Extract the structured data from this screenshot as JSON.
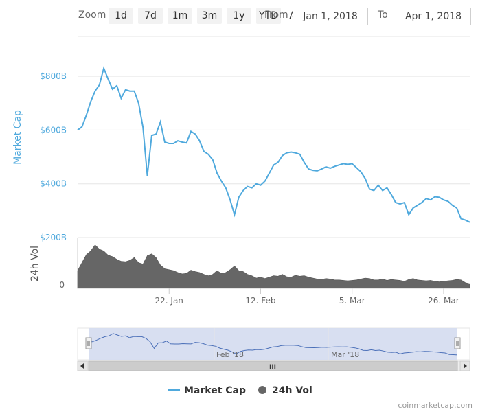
{
  "range_selector": {
    "zoom_label": "Zoom",
    "buttons": [
      "1d",
      "7d",
      "1m",
      "3m",
      "1y",
      "YTD",
      "ALL"
    ],
    "from_label": "From",
    "to_label": "To",
    "from_value": "Jan 1, 2018",
    "to_value": "Apr 1, 2018"
  },
  "navigator": {
    "labels": [
      "Feb '18",
      "Mar '18"
    ],
    "scroll_grip": "III"
  },
  "legend": {
    "market_cap": "Market Cap",
    "volume": "24h Vol"
  },
  "credit": "coinmarketcap.com",
  "colors": {
    "market_cap": "#4fa9dd",
    "volume": "#666666",
    "navigator_fill": "#d4dcf0",
    "navigator_line": "#4a6fb8"
  },
  "chart_data": {
    "type": "line",
    "x_type": "date",
    "x_range": [
      "2018-01-01",
      "2018-04-01"
    ],
    "x_tick_labels": [
      "22. Jan",
      "12. Feb",
      "5. Mar",
      "26. Mar"
    ],
    "grid": true,
    "legend_position": "bottom",
    "panels": [
      {
        "name": "price",
        "ylabel": "Market Cap",
        "y_tick_labels": [
          "$200B",
          "$400B",
          "$600B",
          "$800B"
        ],
        "ylim": [
          200,
          900
        ],
        "y_unit": "B USD",
        "series": [
          {
            "name": "Market Cap",
            "points": [
              [
                "2018-01-01",
                600
              ],
              [
                "2018-01-02",
                612
              ],
              [
                "2018-01-03",
                655
              ],
              [
                "2018-01-04",
                705
              ],
              [
                "2018-01-05",
                745
              ],
              [
                "2018-01-06",
                768
              ],
              [
                "2018-01-07",
                830
              ],
              [
                "2018-01-08",
                790
              ],
              [
                "2018-01-09",
                752
              ],
              [
                "2018-01-10",
                765
              ],
              [
                "2018-01-11",
                718
              ],
              [
                "2018-01-12",
                750
              ],
              [
                "2018-01-13",
                745
              ],
              [
                "2018-01-14",
                745
              ],
              [
                "2018-01-15",
                700
              ],
              [
                "2018-01-16",
                610
              ],
              [
                "2018-01-17",
                430
              ],
              [
                "2018-01-18",
                580
              ],
              [
                "2018-01-19",
                585
              ],
              [
                "2018-01-20",
                630
              ],
              [
                "2018-01-21",
                555
              ],
              [
                "2018-01-22",
                550
              ],
              [
                "2018-01-23",
                550
              ],
              [
                "2018-01-24",
                560
              ],
              [
                "2018-01-25",
                555
              ],
              [
                "2018-01-26",
                552
              ],
              [
                "2018-01-27",
                595
              ],
              [
                "2018-01-28",
                585
              ],
              [
                "2018-01-29",
                560
              ],
              [
                "2018-01-30",
                520
              ],
              [
                "2018-01-31",
                510
              ],
              [
                "2018-02-01",
                490
              ],
              [
                "2018-02-02",
                440
              ],
              [
                "2018-02-03",
                410
              ],
              [
                "2018-02-04",
                385
              ],
              [
                "2018-02-05",
                340
              ],
              [
                "2018-02-06",
                285
              ],
              [
                "2018-02-07",
                350
              ],
              [
                "2018-02-08",
                375
              ],
              [
                "2018-02-09",
                390
              ],
              [
                "2018-02-10",
                385
              ],
              [
                "2018-02-11",
                400
              ],
              [
                "2018-02-12",
                395
              ],
              [
                "2018-02-13",
                410
              ],
              [
                "2018-02-14",
                440
              ],
              [
                "2018-02-15",
                470
              ],
              [
                "2018-02-16",
                480
              ],
              [
                "2018-02-17",
                505
              ],
              [
                "2018-02-18",
                515
              ],
              [
                "2018-02-19",
                518
              ],
              [
                "2018-02-20",
                515
              ],
              [
                "2018-02-21",
                510
              ],
              [
                "2018-02-22",
                480
              ],
              [
                "2018-02-23",
                455
              ],
              [
                "2018-02-24",
                450
              ],
              [
                "2018-02-25",
                448
              ],
              [
                "2018-02-26",
                455
              ],
              [
                "2018-02-27",
                463
              ],
              [
                "2018-02-28",
                458
              ],
              [
                "2018-03-01",
                465
              ],
              [
                "2018-03-02",
                470
              ],
              [
                "2018-03-03",
                475
              ],
              [
                "2018-03-04",
                472
              ],
              [
                "2018-03-05",
                475
              ],
              [
                "2018-03-06",
                460
              ],
              [
                "2018-03-07",
                445
              ],
              [
                "2018-03-08",
                420
              ],
              [
                "2018-03-09",
                380
              ],
              [
                "2018-03-10",
                375
              ],
              [
                "2018-03-11",
                395
              ],
              [
                "2018-03-12",
                375
              ],
              [
                "2018-03-13",
                385
              ],
              [
                "2018-03-14",
                360
              ],
              [
                "2018-03-15",
                330
              ],
              [
                "2018-03-16",
                325
              ],
              [
                "2018-03-17",
                330
              ],
              [
                "2018-03-18",
                285
              ],
              [
                "2018-03-19",
                310
              ],
              [
                "2018-03-20",
                320
              ],
              [
                "2018-03-21",
                330
              ],
              [
                "2018-03-22",
                345
              ],
              [
                "2018-03-23",
                340
              ],
              [
                "2018-03-24",
                352
              ],
              [
                "2018-03-25",
                350
              ],
              [
                "2018-03-26",
                340
              ],
              [
                "2018-03-27",
                335
              ],
              [
                "2018-03-28",
                320
              ],
              [
                "2018-03-29",
                310
              ],
              [
                "2018-03-30",
                270
              ],
              [
                "2018-03-31",
                265
              ],
              [
                "2018-04-01",
                257
              ]
            ]
          }
        ]
      },
      {
        "name": "volume",
        "ylabel": "24h Vol",
        "y_tick_labels": [
          "0"
        ],
        "y_unit": "relative",
        "series": [
          {
            "name": "24h Vol",
            "points": [
              [
                "2018-01-01",
                38
              ],
              [
                "2018-01-02",
                55
              ],
              [
                "2018-01-03",
                72
              ],
              [
                "2018-01-04",
                80
              ],
              [
                "2018-01-05",
                93
              ],
              [
                "2018-01-06",
                84
              ],
              [
                "2018-01-07",
                80
              ],
              [
                "2018-01-08",
                71
              ],
              [
                "2018-01-09",
                68
              ],
              [
                "2018-01-10",
                62
              ],
              [
                "2018-01-11",
                58
              ],
              [
                "2018-01-12",
                57
              ],
              [
                "2018-01-13",
                60
              ],
              [
                "2018-01-14",
                66
              ],
              [
                "2018-01-15",
                55
              ],
              [
                "2018-01-16",
                52
              ],
              [
                "2018-01-17",
                70
              ],
              [
                "2018-01-18",
                74
              ],
              [
                "2018-01-19",
                66
              ],
              [
                "2018-01-20",
                50
              ],
              [
                "2018-01-21",
                42
              ],
              [
                "2018-01-22",
                40
              ],
              [
                "2018-01-23",
                38
              ],
              [
                "2018-01-24",
                34
              ],
              [
                "2018-01-25",
                31
              ],
              [
                "2018-01-26",
                32
              ],
              [
                "2018-01-27",
                39
              ],
              [
                "2018-01-28",
                36
              ],
              [
                "2018-01-29",
                34
              ],
              [
                "2018-01-30",
                30
              ],
              [
                "2018-01-31",
                27
              ],
              [
                "2018-02-01",
                30
              ],
              [
                "2018-02-02",
                38
              ],
              [
                "2018-02-03",
                32
              ],
              [
                "2018-02-04",
                34
              ],
              [
                "2018-02-05",
                40
              ],
              [
                "2018-02-06",
                48
              ],
              [
                "2018-02-07",
                38
              ],
              [
                "2018-02-08",
                36
              ],
              [
                "2018-02-09",
                30
              ],
              [
                "2018-02-10",
                27
              ],
              [
                "2018-02-11",
                22
              ],
              [
                "2018-02-12",
                24
              ],
              [
                "2018-02-13",
                21
              ],
              [
                "2018-02-14",
                24
              ],
              [
                "2018-02-15",
                27
              ],
              [
                "2018-02-16",
                26
              ],
              [
                "2018-02-17",
                30
              ],
              [
                "2018-02-18",
                25
              ],
              [
                "2018-02-19",
                24
              ],
              [
                "2018-02-20",
                28
              ],
              [
                "2018-02-21",
                26
              ],
              [
                "2018-02-22",
                27
              ],
              [
                "2018-02-23",
                24
              ],
              [
                "2018-02-24",
                22
              ],
              [
                "2018-02-25",
                20
              ],
              [
                "2018-02-26",
                19
              ],
              [
                "2018-02-27",
                21
              ],
              [
                "2018-02-28",
                20
              ],
              [
                "2018-03-01",
                18
              ],
              [
                "2018-03-02",
                18
              ],
              [
                "2018-03-03",
                17
              ],
              [
                "2018-03-04",
                16
              ],
              [
                "2018-03-05",
                17
              ],
              [
                "2018-03-06",
                18
              ],
              [
                "2018-03-07",
                20
              ],
              [
                "2018-03-08",
                22
              ],
              [
                "2018-03-09",
                21
              ],
              [
                "2018-03-10",
                18
              ],
              [
                "2018-03-11",
                18
              ],
              [
                "2018-03-12",
                20
              ],
              [
                "2018-03-13",
                17
              ],
              [
                "2018-03-14",
                19
              ],
              [
                "2018-03-15",
                18
              ],
              [
                "2018-03-16",
                17
              ],
              [
                "2018-03-17",
                15
              ],
              [
                "2018-03-18",
                19
              ],
              [
                "2018-03-19",
                21
              ],
              [
                "2018-03-20",
                18
              ],
              [
                "2018-03-21",
                17
              ],
              [
                "2018-03-22",
                16
              ],
              [
                "2018-03-23",
                17
              ],
              [
                "2018-03-24",
                15
              ],
              [
                "2018-03-25",
                14
              ],
              [
                "2018-03-26",
                15
              ],
              [
                "2018-03-27",
                16
              ],
              [
                "2018-03-28",
                17
              ],
              [
                "2018-03-29",
                19
              ],
              [
                "2018-03-30",
                18
              ],
              [
                "2018-03-31",
                12
              ],
              [
                "2018-04-01",
                10
              ]
            ]
          }
        ]
      }
    ]
  }
}
